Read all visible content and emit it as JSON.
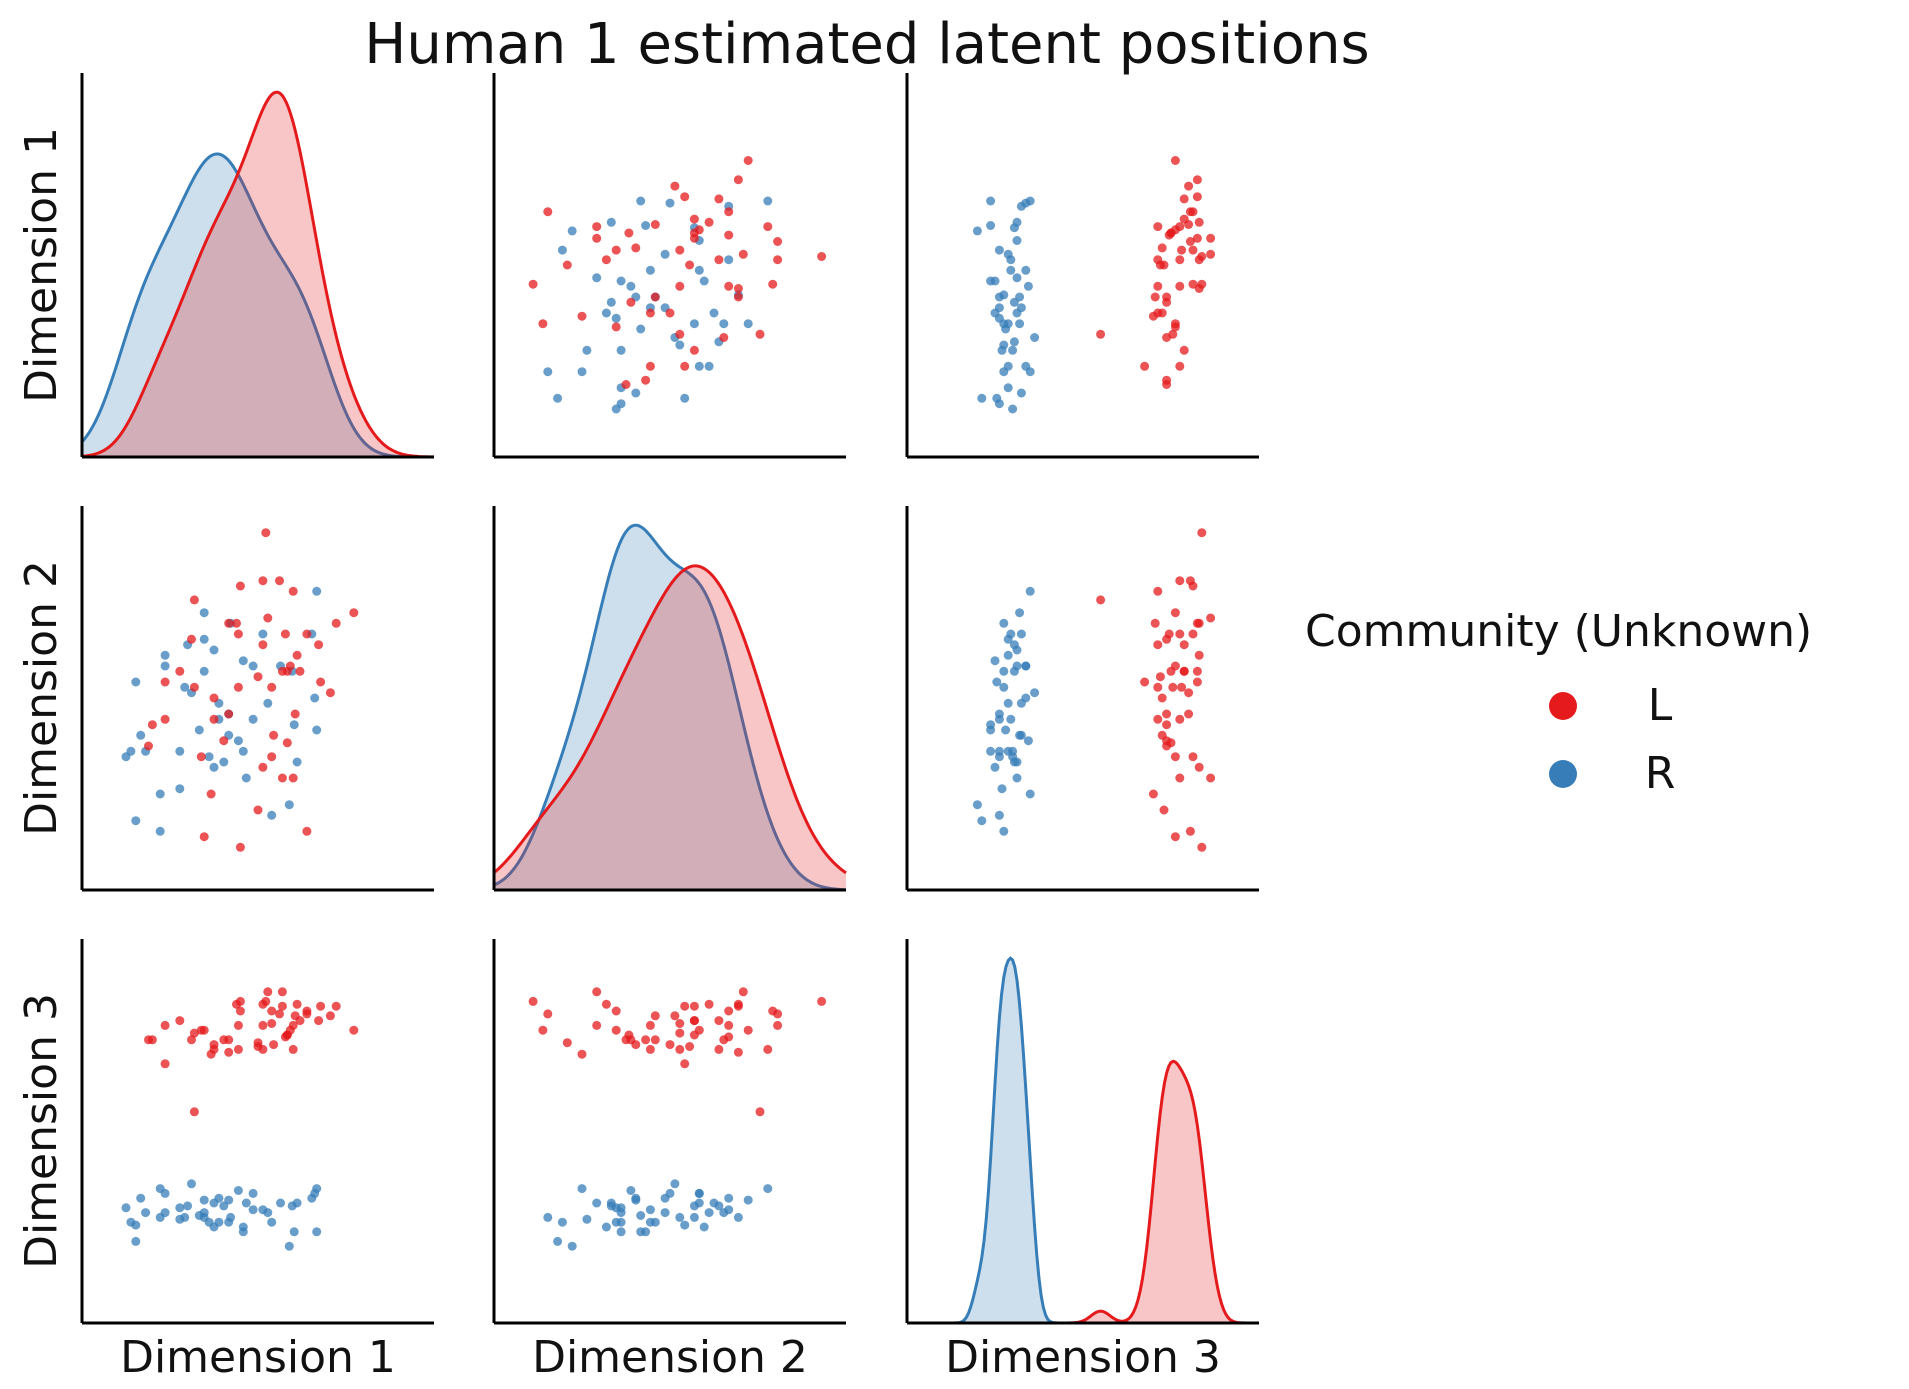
{
  "title": "Human 1 estimated latent positions",
  "colors": {
    "L": "#e41a1c",
    "R": "#377eb8"
  },
  "legend": {
    "title": "Community (Unknown)",
    "items": [
      {
        "label": "L",
        "color": "#e41a1c"
      },
      {
        "label": "R",
        "color": "#377eb8"
      }
    ]
  },
  "chart_data": {
    "type": "scatter",
    "variables": [
      "Dimension 1",
      "Dimension 2",
      "Dimension 3"
    ],
    "xlabel_row": [
      "Dimension 1",
      "Dimension 2",
      "Dimension 3"
    ],
    "ylabel_col": [
      "Dimension 1",
      "Dimension 2",
      "Dimension 3"
    ],
    "ticks_shown": false,
    "grid": false,
    "legend_position": "right",
    "diagonal": "kde",
    "ranges": {
      "d1": [
        -1.8,
        1.8
      ],
      "d2": [
        -1.8,
        1.8
      ],
      "d3": [
        -2.0,
        2.0
      ]
    },
    "series": [
      {
        "name": "L",
        "points": [
          [
            0.08,
            1.55,
            1.35
          ],
          [
            0.36,
            1.0,
            0.85
          ],
          [
            -0.65,
            0.92,
            0.2
          ],
          [
            -0.45,
            0.0,
            0.9
          ],
          [
            0.25,
            -0.75,
            1.45
          ],
          [
            0.43,
            0.25,
            1.15
          ],
          [
            -0.95,
            0.15,
            0.7
          ],
          [
            0.8,
            0.7,
            1.3
          ],
          [
            -0.18,
            1.05,
            1.25
          ],
          [
            0.05,
            1.1,
            1.1
          ],
          [
            0.38,
            -0.15,
            1.2
          ],
          [
            -0.3,
            -0.15,
            0.95
          ],
          [
            0.05,
            0.5,
            0.85
          ],
          [
            -0.55,
            -1.3,
            1.05
          ],
          [
            0.74,
            0.05,
            1.2
          ],
          [
            -0.22,
            0.7,
            1.32
          ],
          [
            0.5,
            -1.25,
            1.22
          ],
          [
            0.33,
            0.3,
            1.05
          ],
          [
            -1.12,
            -0.45,
            0.95
          ],
          [
            0.14,
            -0.55,
            1.25
          ],
          [
            -0.45,
            -0.2,
            0.85
          ],
          [
            -0.8,
            0.25,
            1.15
          ],
          [
            -0.68,
            0.55,
            0.95
          ],
          [
            0.25,
            0.25,
            1.3
          ],
          [
            -0.3,
            0.7,
            0.82
          ],
          [
            0.64,
            0.15,
            1.3
          ],
          [
            -1.08,
            -0.25,
            0.95
          ],
          [
            0.62,
            0.5,
            1.15
          ],
          [
            0.1,
            0.75,
            1.45
          ],
          [
            0.16,
            -0.35,
            0.9
          ],
          [
            0.98,
            0.8,
            1.05
          ],
          [
            -0.2,
            0.6,
            1.1
          ],
          [
            0.5,
            0.6,
            1.25
          ],
          [
            0.3,
            -0.42,
            1.0
          ],
          [
            0.14,
            0.1,
            1.12
          ],
          [
            0.36,
            -0.75,
            1.1
          ],
          [
            0.0,
            0.2,
            0.88
          ],
          [
            -0.35,
            -0.4,
            0.95
          ],
          [
            -0.65,
            0.1,
            1.02
          ],
          [
            -0.48,
            -0.9,
            0.8
          ],
          [
            0.22,
            1.1,
            1.22
          ],
          [
            -0.18,
            -1.4,
            1.35
          ],
          [
            0.4,
            0.4,
            1.32
          ],
          [
            -0.95,
            -0.2,
            1.1
          ],
          [
            0.05,
            -0.65,
            1.32
          ],
          [
            0.28,
            0.6,
            0.98
          ],
          [
            0.0,
            -1.05,
            0.92
          ],
          [
            0.3,
            0.25,
            1.0
          ],
          [
            -0.58,
            -0.55,
            1.05
          ],
          [
            -0.2,
            0.1,
            0.85
          ]
        ]
      },
      {
        "name": "R",
        "points": [
          [
            -1.35,
            -0.55,
            -0.8
          ],
          [
            -1.15,
            -0.5,
            -0.85
          ],
          [
            -0.68,
            0.05,
            -0.55
          ],
          [
            -1.0,
            -0.9,
            -0.6
          ],
          [
            0.37,
            -0.25,
            -1.05
          ],
          [
            -0.4,
            -0.2,
            -0.95
          ],
          [
            0.6,
            1.0,
            -0.6
          ],
          [
            0.23,
            0.3,
            -0.75
          ],
          [
            0.55,
            0.6,
            -0.7
          ],
          [
            0.6,
            -0.3,
            -1.05
          ],
          [
            -0.95,
            0.4,
            -0.85
          ],
          [
            -0.55,
            0.25,
            -0.9
          ],
          [
            -0.3,
            -0.15,
            -0.95
          ],
          [
            0.1,
            -0.05,
            -0.85
          ],
          [
            -0.45,
            0.45,
            -0.75
          ],
          [
            -0.8,
            -0.5,
            -0.8
          ],
          [
            -0.15,
            -0.5,
            -1.05
          ],
          [
            -0.55,
            0.55,
            -0.85
          ],
          [
            0.32,
            -1.0,
            -1.2
          ],
          [
            0.58,
            0.0,
            -0.65
          ],
          [
            -0.3,
            -0.35,
            -0.72
          ],
          [
            -1.0,
            -1.25,
            -0.9
          ],
          [
            -0.28,
            0.7,
            -0.9
          ],
          [
            -1.25,
            0.15,
            -0.98
          ],
          [
            -0.35,
            -0.6,
            -0.78
          ],
          [
            -0.15,
            0.35,
            -1.0
          ],
          [
            0.05,
            0.6,
            -0.82
          ],
          [
            -1.25,
            -1.15,
            -1.15
          ],
          [
            -0.4,
            -0.05,
            -0.7
          ],
          [
            -0.55,
            0.8,
            -0.72
          ],
          [
            -0.8,
            -0.85,
            -0.92
          ],
          [
            0.4,
            -0.6,
            -0.75
          ],
          [
            -0.12,
            -0.75,
            -0.75
          ],
          [
            -0.75,
            0.1,
            -0.9
          ],
          [
            -0.2,
            -0.4,
            -0.62
          ],
          [
            -0.72,
            0.5,
            -0.78
          ],
          [
            0.35,
            0.25,
            -0.78
          ],
          [
            -0.05,
            0.3,
            -0.65
          ],
          [
            -0.5,
            -0.55,
            -0.95
          ],
          [
            -0.05,
            -0.2,
            -0.82
          ],
          [
            -0.95,
            0.3,
            -0.65
          ],
          [
            -1.2,
            -0.35,
            -0.7
          ],
          [
            -1.3,
            -0.5,
            -0.95
          ],
          [
            -0.45,
            -0.65,
            -1.0
          ],
          [
            0.14,
            -1.1,
            -0.95
          ],
          [
            -0.6,
            -0.3,
            -0.88
          ]
        ]
      }
    ]
  }
}
